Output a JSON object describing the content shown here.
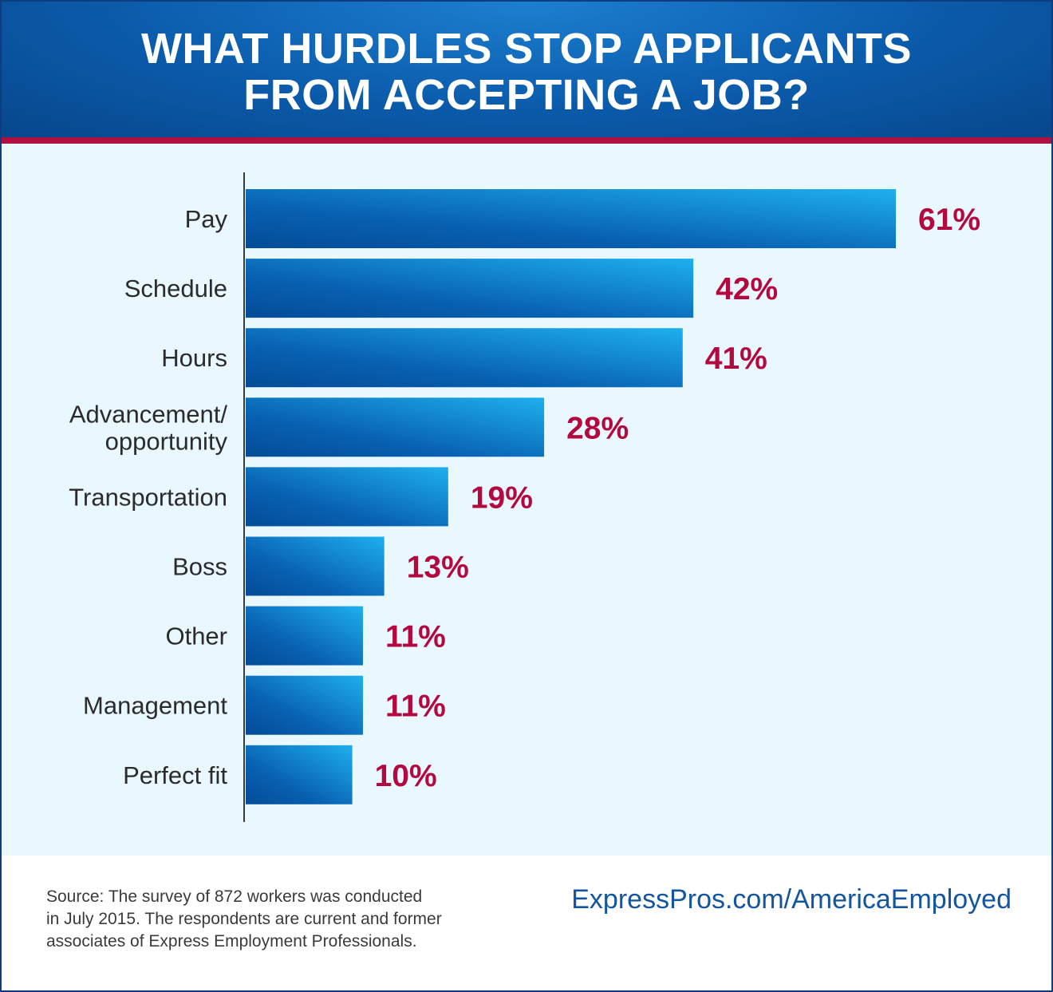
{
  "header": {
    "title": "WHAT HURDLES STOP APPLICANTS\nFROM ACCEPTING A JOB?"
  },
  "colors": {
    "header_blue": "#0b5bab",
    "accent_red": "#b0103f",
    "value_red": "#b3093f",
    "bar_dark": "#034c98",
    "bar_light": "#1eb0ee",
    "panel_bg": "#e9f7fe",
    "url_blue": "#13559e"
  },
  "chart_data": {
    "type": "bar",
    "orientation": "horizontal",
    "categories": [
      "Pay",
      "Schedule",
      "Hours",
      "Advancement/\nopportunity",
      "Transportation",
      "Boss",
      "Other",
      "Management",
      "Perfect fit"
    ],
    "values": [
      61,
      42,
      41,
      28,
      19,
      13,
      11,
      11,
      10
    ],
    "value_labels": [
      "61%",
      "42%",
      "41%",
      "28%",
      "19%",
      "13%",
      "11%",
      "11%",
      "10%"
    ],
    "xlim": [
      0,
      61
    ],
    "grid": false,
    "legend": "none"
  },
  "footer": {
    "source": "Source: The survey of 872 workers was conducted\nin July 2015. The respondents are current and former\nassociates of Express Employment Professionals.",
    "url": "ExpressPros.com/AmericaEmployed"
  }
}
